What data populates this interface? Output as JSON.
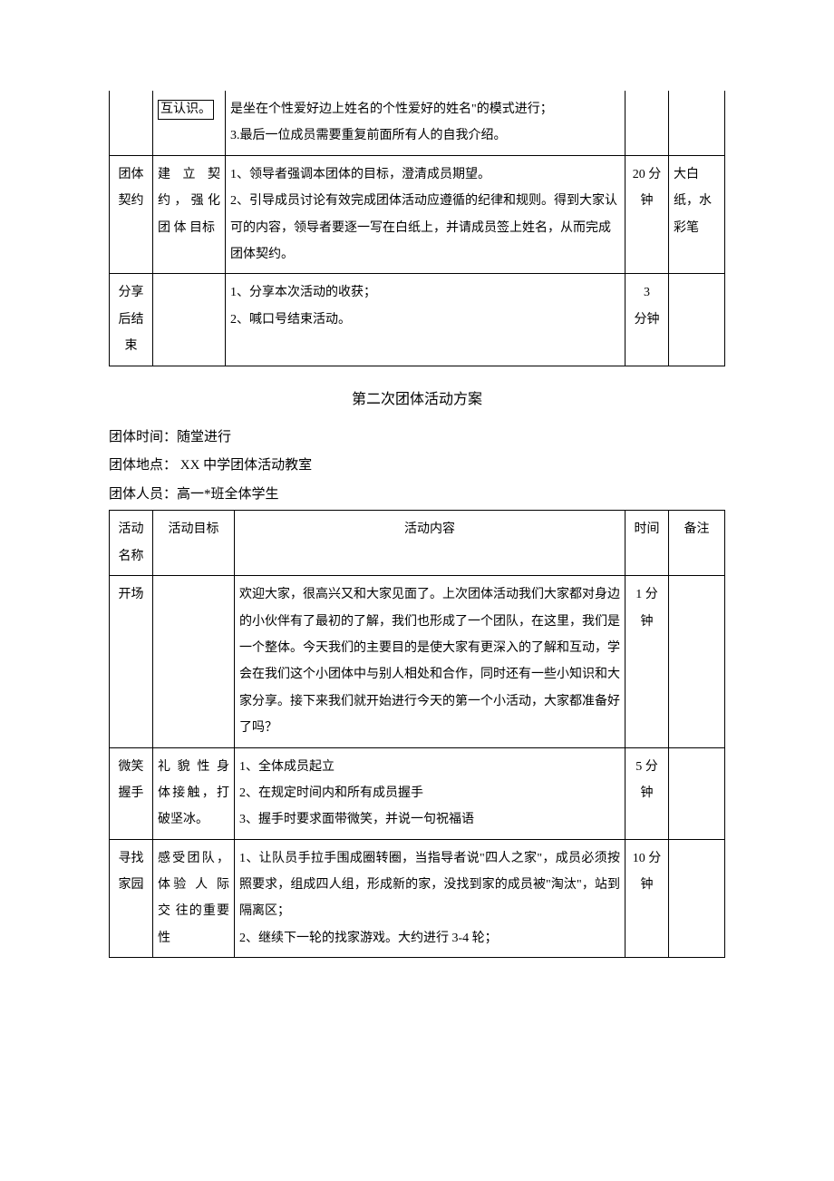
{
  "table1": {
    "rows": [
      {
        "c1": "",
        "c2_boxed": "互认识。",
        "c3": "是坐在个性爱好边上姓名的个性爱好的姓名\"的模式进行；\n3.最后一位成员需要重复前面所有人的自我介绍。",
        "c4": "",
        "c5": ""
      },
      {
        "c1": "团体契约",
        "c2": "建 立 契约，强化团 体 目标",
        "c3": "1、领导者强调本团体的目标，澄清成员期望。\n2、引导成员讨论有效完成团体活动应遵循的纪律和规则。得到大家认可的内容，领导者要逐一写在白纸上，并请成员签上姓名，从而完成团体契约。",
        "c4": "20 分钟",
        "c5": "大白纸，水彩笔"
      },
      {
        "c1": "分享后结束",
        "c2": "",
        "c3": "1、分享本次活动的收获；\n2、喊口号结束活动。",
        "c4": "3\n分钟",
        "c5": ""
      }
    ]
  },
  "section2": {
    "title": "第二次团体活动方案",
    "meta": {
      "time": "团体时间：随堂进行",
      "place": "团体地点：  XX 中学团体活动教室",
      "people": "团体人员：高一*班全体学生"
    }
  },
  "table2": {
    "headers": {
      "c1": "活动名称",
      "c2": "活动目标",
      "c3": "活动内容",
      "c4": "时间",
      "c5": "备注"
    },
    "rows": [
      {
        "c1": "开场",
        "c2": "",
        "c3": "欢迎大家，很高兴又和大家见面了。上次团体活动我们大家都对身边的小伙伴有了最初的了解，我们也形成了一个团队，在这里，我们是一个整体。今天我们的主要目的是使大家有更深入的了解和互动，学会在我们这个小团体中与别人相处和合作，同时还有一些小知识和大家分享。接下来我们就开始进行今天的第一个小活动，大家都准备好了吗？",
        "c4": "1 分钟",
        "c5": ""
      },
      {
        "c1": "微笑握手",
        "c2": "礼 貌 性 身 体接触，打破坚冰。",
        "c3": "1、全体成员起立\n2、在规定时间内和所有成员握手\n3、握手时要求面带微笑，并说一句祝福语",
        "c4": "5 分钟",
        "c5": ""
      },
      {
        "c1": "寻找家园",
        "c2": "感受团队，体验 人 际 交 往的重要性",
        "c3": "1、让队员手拉手围成圈转圈，当指导者说\"四人之家\"，成员必须按照要求，组成四人组，形成新的家，没找到家的成员被\"淘汰\"，站到隔离区；\n2、继续下一轮的找家游戏。大约进行 3-4 轮；",
        "c4": "10 分钟",
        "c5": ""
      }
    ]
  }
}
